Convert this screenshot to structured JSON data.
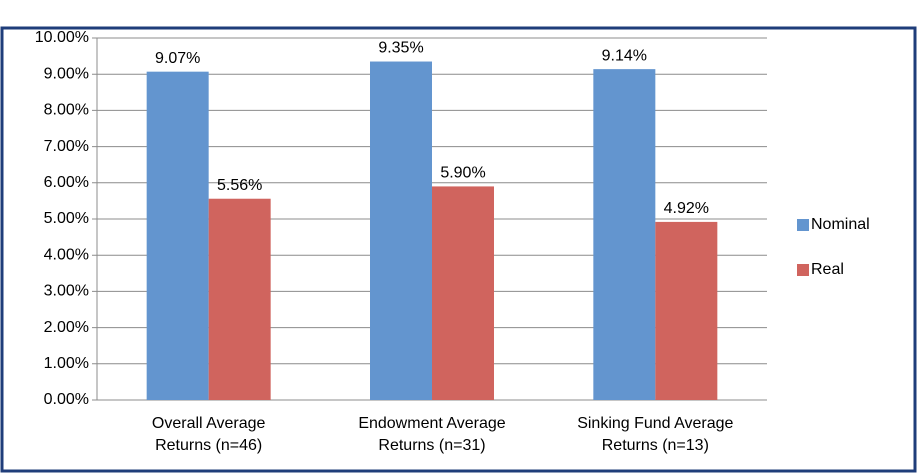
{
  "chart_data": {
    "type": "bar",
    "categories": [
      [
        "Overall Average",
        "Returns (n=46)"
      ],
      [
        "Endowment Average",
        "Returns (n=31)"
      ],
      [
        "Sinking Fund Average",
        "Returns (n=13)"
      ]
    ],
    "series": [
      {
        "name": "Nominal",
        "color": "#6395cf",
        "values": [
          9.07,
          9.35,
          9.14
        ],
        "value_labels": [
          "9.07%",
          "9.35%",
          "9.14%"
        ]
      },
      {
        "name": "Real",
        "color": "#d0645e",
        "values": [
          5.56,
          5.9,
          4.92
        ],
        "value_labels": [
          "5.56%",
          "5.90%",
          "4.92%"
        ]
      }
    ],
    "ylim": [
      0,
      10
    ],
    "yticks": [
      {
        "value": 0,
        "label": "0.00%"
      },
      {
        "value": 1,
        "label": "1.00%"
      },
      {
        "value": 2,
        "label": "2.00%"
      },
      {
        "value": 3,
        "label": "3.00%"
      },
      {
        "value": 4,
        "label": "4.00%"
      },
      {
        "value": 5,
        "label": "5.00%"
      },
      {
        "value": 6,
        "label": "6.00%"
      },
      {
        "value": 7,
        "label": "7.00%"
      },
      {
        "value": 8,
        "label": "8.00%"
      },
      {
        "value": 9,
        "label": "9.00%"
      },
      {
        "value": 10,
        "label": "10.00%"
      }
    ],
    "grid": true,
    "legend": "right"
  }
}
